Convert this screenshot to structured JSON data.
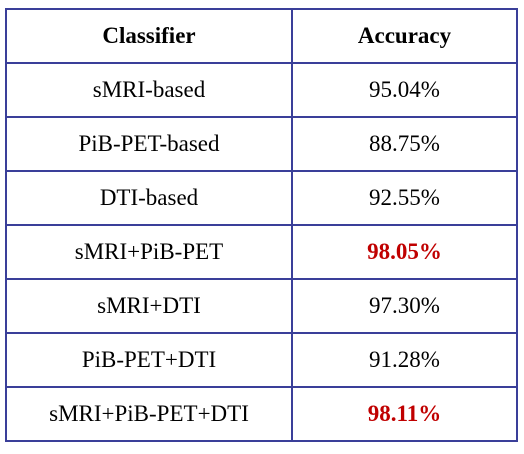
{
  "table": {
    "headers": {
      "classifier": "Classifier",
      "accuracy": "Accuracy"
    },
    "rows": [
      {
        "classifier": "sMRI-based",
        "accuracy": "95.04%",
        "highlight": false
      },
      {
        "classifier": "PiB-PET-based",
        "accuracy": "88.75%",
        "highlight": false
      },
      {
        "classifier": "DTI-based",
        "accuracy": "92.55%",
        "highlight": false
      },
      {
        "classifier": "sMRI+PiB-PET",
        "accuracy": "98.05%",
        "highlight": true
      },
      {
        "classifier": "sMRI+DTI",
        "accuracy": "97.30%",
        "highlight": false
      },
      {
        "classifier": "PiB-PET+DTI",
        "accuracy": "91.28%",
        "highlight": false
      },
      {
        "classifier": "sMRI+PiB-PET+DTI",
        "accuracy": "98.11%",
        "highlight": true
      }
    ]
  },
  "colors": {
    "border": "#3a3f99",
    "highlight_text": "#c00000",
    "text": "#000000"
  }
}
